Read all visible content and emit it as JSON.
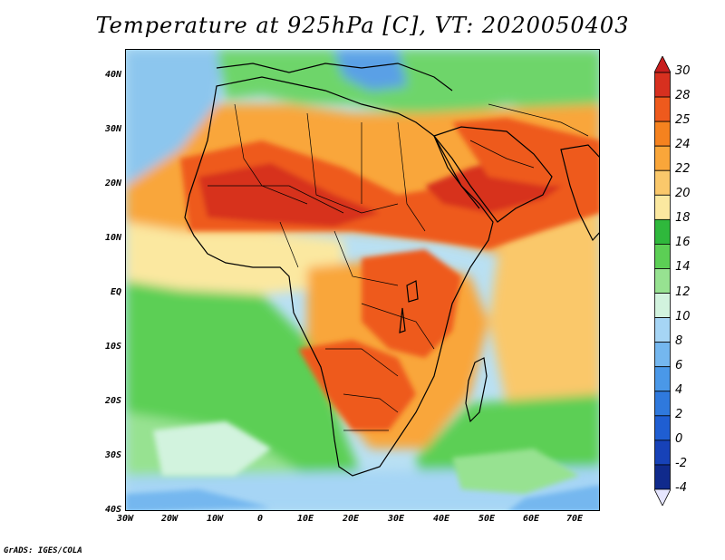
{
  "title": "Temperature at 925hPa [C], VT: 2020050403",
  "credit": "GrADS: IGES/COLA",
  "lat_labels": [
    "40N",
    "30N",
    "20N",
    "10N",
    "EQ",
    "10S",
    "20S",
    "30S",
    "40S"
  ],
  "lon_labels": [
    "30W",
    "20W",
    "10W",
    "0",
    "10E",
    "20E",
    "30E",
    "40E",
    "50E",
    "60E",
    "70E"
  ],
  "colorbar": {
    "labels": [
      "30",
      "28",
      "25",
      "24",
      "22",
      "20",
      "18",
      "16",
      "14",
      "12",
      "10",
      "8",
      "6",
      "4",
      "2",
      "0",
      "-2",
      "-4"
    ],
    "colors": [
      "#d7301f",
      "#ee5a1d",
      "#f5821f",
      "#f9a63a",
      "#fac86b",
      "#fbe8a0",
      "#2fb83c",
      "#5ccf55",
      "#97e291",
      "#d2f3de",
      "#a6d5f5",
      "#74b7ef",
      "#4a98e8",
      "#2f79dd",
      "#1f5ed2",
      "#1742b8",
      "#102a8c"
    ],
    "over_color": "#c81e1e",
    "under_color": "#e6e6ff"
  }
}
